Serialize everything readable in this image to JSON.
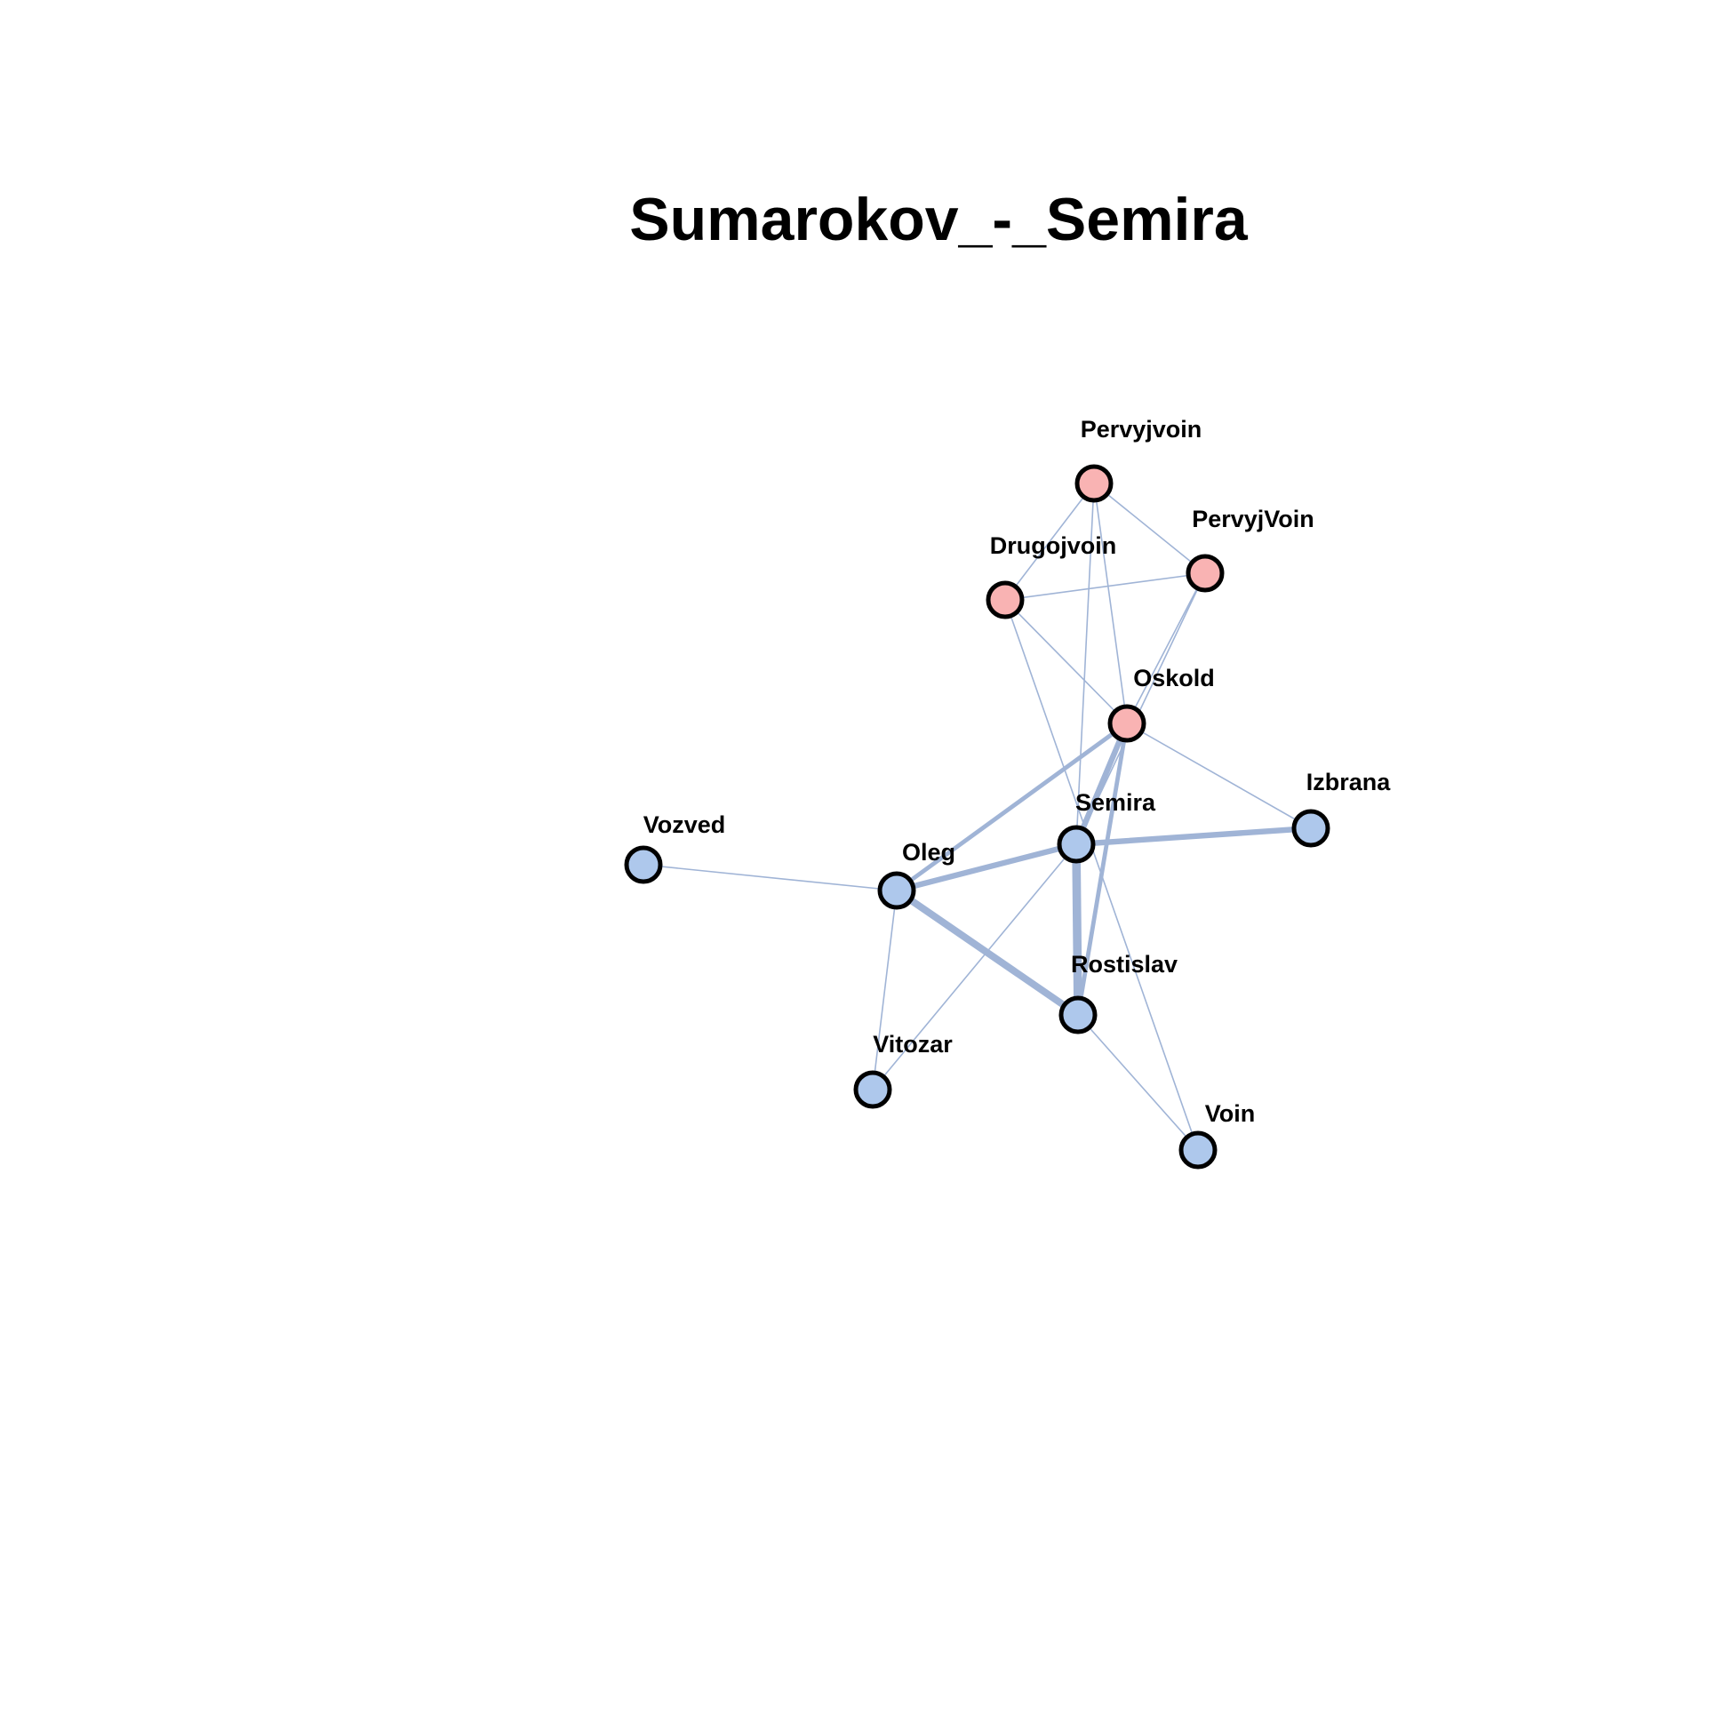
{
  "title": "Sumarokov_-_Semira",
  "colors": {
    "edge": "#a0b4d6",
    "node_blue": "#aec8ec",
    "node_pink": "#f9b3b3",
    "node_stroke": "#000000"
  },
  "nodes": [
    {
      "id": "Pervyjvoin",
      "label": "Pervyjvoin",
      "group": "pink"
    },
    {
      "id": "PervyjVoin",
      "label": "PervyjVoin",
      "group": "pink"
    },
    {
      "id": "Drugojvoin",
      "label": "Drugojvoin",
      "group": "pink"
    },
    {
      "id": "Oskold",
      "label": "Oskold",
      "group": "pink"
    },
    {
      "id": "Izbrana",
      "label": "Izbrana",
      "group": "blue"
    },
    {
      "id": "Semira",
      "label": "Semira",
      "group": "blue"
    },
    {
      "id": "Vozved",
      "label": "Vozved",
      "group": "blue"
    },
    {
      "id": "Oleg",
      "label": "Oleg",
      "group": "blue"
    },
    {
      "id": "Rostislav",
      "label": "Rostislav",
      "group": "blue"
    },
    {
      "id": "Vitozar",
      "label": "Vitozar",
      "group": "blue"
    },
    {
      "id": "Voin",
      "label": "Voin",
      "group": "blue"
    }
  ],
  "edges": [
    {
      "source": "Pervyjvoin",
      "target": "Drugojvoin",
      "weight": 1
    },
    {
      "source": "Pervyjvoin",
      "target": "PervyjVoin",
      "weight": 1
    },
    {
      "source": "Pervyjvoin",
      "target": "Oskold",
      "weight": 1
    },
    {
      "source": "Pervyjvoin",
      "target": "Semira",
      "weight": 1
    },
    {
      "source": "Drugojvoin",
      "target": "PervyjVoin",
      "weight": 1
    },
    {
      "source": "Drugojvoin",
      "target": "Oskold",
      "weight": 1
    },
    {
      "source": "Drugojvoin",
      "target": "Voin",
      "weight": 1
    },
    {
      "source": "PervyjVoin",
      "target": "Oskold",
      "weight": 1
    },
    {
      "source": "PervyjVoin",
      "target": "Semira",
      "weight": 1
    },
    {
      "source": "Oskold",
      "target": "Izbrana",
      "weight": 1
    },
    {
      "source": "Oskold",
      "target": "Oleg",
      "weight": 3
    },
    {
      "source": "Oskold",
      "target": "Semira",
      "weight": 4
    },
    {
      "source": "Oskold",
      "target": "Rostislav",
      "weight": 3
    },
    {
      "source": "Semira",
      "target": "Izbrana",
      "weight": 4
    },
    {
      "source": "Semira",
      "target": "Oleg",
      "weight": 4
    },
    {
      "source": "Semira",
      "target": "Rostislav",
      "weight": 6
    },
    {
      "source": "Semira",
      "target": "Vitozar",
      "weight": 1
    },
    {
      "source": "Oleg",
      "target": "Vozved",
      "weight": 1
    },
    {
      "source": "Oleg",
      "target": "Rostislav",
      "weight": 5
    },
    {
      "source": "Oleg",
      "target": "Vitozar",
      "weight": 1
    },
    {
      "source": "Rostislav",
      "target": "Voin",
      "weight": 1
    }
  ]
}
